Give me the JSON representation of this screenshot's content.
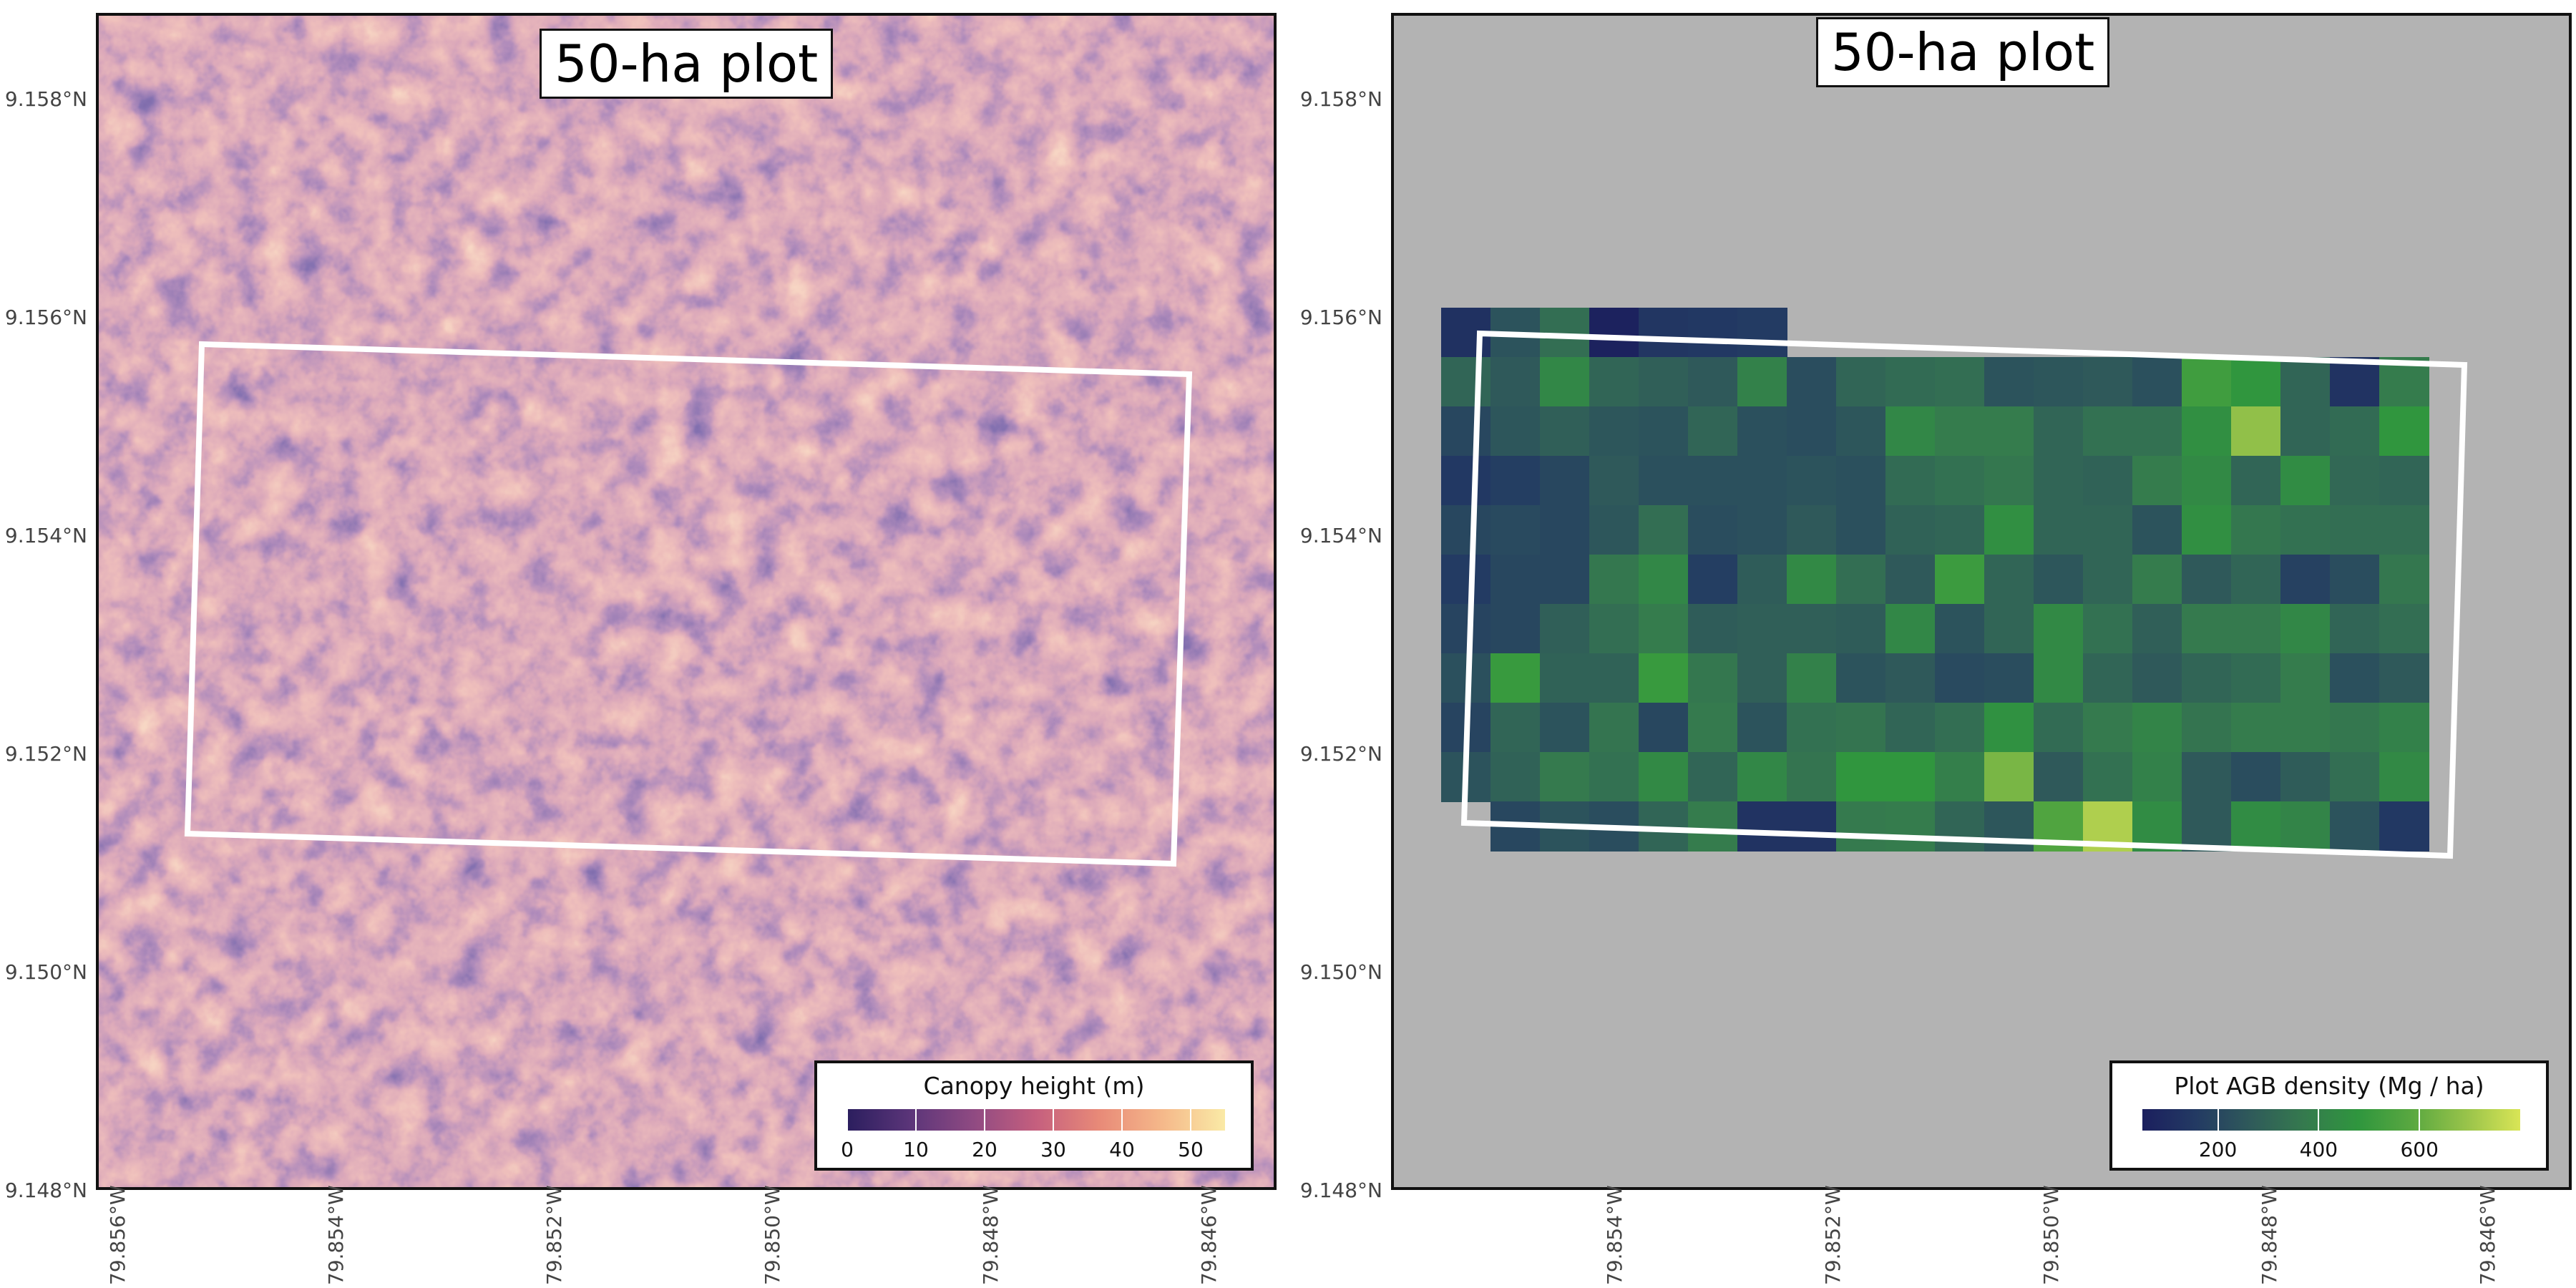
{
  "left_map": {
    "title": "50-ha plot",
    "legend_title": "Canopy height (m)",
    "legend_ticks": [
      "0",
      "10",
      "20",
      "30",
      "40",
      "50"
    ],
    "legend_range": [
      0,
      55
    ],
    "palette": [
      "#2b1e5e",
      "#5b3579",
      "#8f4a82",
      "#c55f7e",
      "#e88a78",
      "#f5b88a",
      "#faeaa6"
    ],
    "y_ticks": [
      "9.158°N",
      "9.156°N",
      "9.154°N",
      "9.152°N",
      "9.150°N",
      "9.148°N"
    ],
    "x_ticks": [
      "79.856°W",
      "79.854°W",
      "79.852°W",
      "79.850°W",
      "79.848°W",
      "79.846°W"
    ],
    "outline_color": "#ffffff"
  },
  "right_map": {
    "title": "50-ha plot",
    "legend_title": "Plot AGB density (Mg / ha)",
    "legend_ticks": [
      "200",
      "400",
      "600"
    ],
    "legend_range": [
      50,
      800
    ],
    "palette": [
      "#1b1f5e",
      "#233a63",
      "#2f5a5a",
      "#357a4e",
      "#2f963e",
      "#5aa840",
      "#98c34a",
      "#d9e556"
    ],
    "background_color": "#b3b3b3",
    "y_ticks": [
      "9.158°N",
      "9.156°N",
      "9.154°N",
      "9.152°N",
      "9.150°N",
      "9.148°N"
    ],
    "x_ticks": [
      "79.854°W",
      "79.852°W",
      "79.850°W",
      "79.848°W",
      "79.846°W"
    ],
    "grid_rows": [
      [
        120,
        240,
        330,
        60,
        140,
        150,
        160,
        null,
        null,
        null,
        null,
        null,
        null,
        null,
        null,
        null,
        null,
        null,
        null,
        null
      ],
      [
        300,
        260,
        420,
        300,
        280,
        260,
        400,
        220,
        300,
        320,
        330,
        240,
        250,
        260,
        230,
        520,
        480,
        300,
        130,
        380
      ],
      [
        200,
        250,
        280,
        250,
        240,
        300,
        230,
        220,
        250,
        420,
        380,
        380,
        300,
        340,
        340,
        450,
        680,
        300,
        320,
        480
      ],
      [
        150,
        170,
        200,
        260,
        230,
        230,
        230,
        240,
        230,
        320,
        340,
        360,
        300,
        290,
        380,
        430,
        300,
        440,
        310,
        300
      ],
      [
        200,
        210,
        200,
        250,
        330,
        220,
        230,
        260,
        230,
        290,
        300,
        450,
        300,
        300,
        240,
        450,
        360,
        340,
        330,
        330
      ],
      [
        160,
        200,
        200,
        360,
        420,
        170,
        270,
        430,
        330,
        260,
        510,
        300,
        250,
        300,
        380,
        260,
        300,
        180,
        220,
        360
      ],
      [
        190,
        200,
        280,
        330,
        380,
        270,
        280,
        280,
        270,
        420,
        240,
        300,
        430,
        340,
        280,
        370,
        370,
        420,
        300,
        330
      ],
      [
        230,
        500,
        290,
        290,
        500,
        360,
        280,
        400,
        240,
        260,
        210,
        220,
        430,
        300,
        260,
        300,
        320,
        380,
        230,
        260
      ],
      [
        190,
        300,
        240,
        350,
        200,
        370,
        240,
        340,
        350,
        300,
        330,
        460,
        320,
        370,
        410,
        350,
        380,
        380,
        360,
        400
      ],
      [
        240,
        290,
        370,
        340,
        430,
        300,
        420,
        350,
        480,
        480,
        390,
        640,
        260,
        340,
        400,
        260,
        220,
        270,
        330,
        430
      ],
      [
        null,
        200,
        240,
        220,
        300,
        380,
        130,
        130,
        370,
        380,
        300,
        250,
        560,
        730,
        440,
        260,
        440,
        410,
        240,
        150
      ]
    ]
  }
}
